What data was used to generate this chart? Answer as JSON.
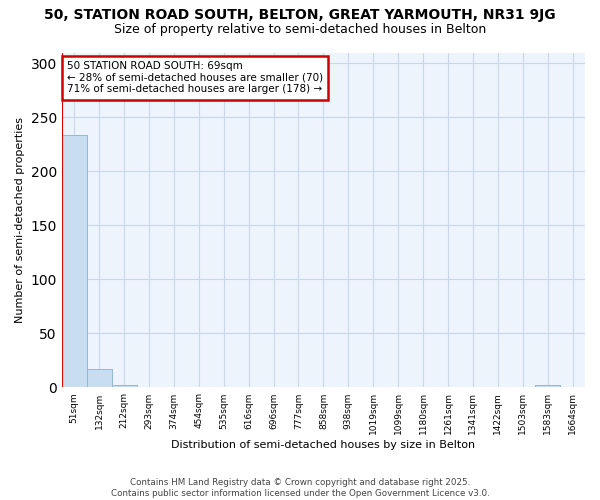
{
  "title": "50, STATION ROAD SOUTH, BELTON, GREAT YARMOUTH, NR31 9JG",
  "subtitle": "Size of property relative to semi-detached houses in Belton",
  "xlabel": "Distribution of semi-detached houses by size in Belton",
  "ylabel": "Number of semi-detached properties",
  "bar_color": "#c8ddf0",
  "bar_edge_color": "#90b8d8",
  "bins": [
    "51sqm",
    "132sqm",
    "212sqm",
    "293sqm",
    "374sqm",
    "454sqm",
    "535sqm",
    "616sqm",
    "696sqm",
    "777sqm",
    "858sqm",
    "938sqm",
    "1019sqm",
    "1099sqm",
    "1180sqm",
    "1261sqm",
    "1341sqm",
    "1422sqm",
    "1503sqm",
    "1583sqm",
    "1664sqm"
  ],
  "values": [
    234,
    17,
    2,
    0,
    0,
    0,
    0,
    0,
    0,
    0,
    0,
    0,
    0,
    0,
    0,
    0,
    0,
    0,
    0,
    2,
    0
  ],
  "ylim_max": 310,
  "yticks": [
    0,
    50,
    100,
    150,
    200,
    250,
    300
  ],
  "subject_label": "50 STATION ROAD SOUTH: 69sqm",
  "subject_pct_smaller": 28,
  "subject_count_smaller": 70,
  "subject_pct_larger": 71,
  "subject_count_larger": 178,
  "annotation_box_edgecolor": "#cc0000",
  "red_line_color": "#dd0000",
  "grid_color": "#c8d8ec",
  "bg_color": "#ffffff",
  "plot_bg_color": "#eef4fc",
  "footer_line1": "Contains HM Land Registry data © Crown copyright and database right 2025.",
  "footer_line2": "Contains public sector information licensed under the Open Government Licence v3.0."
}
